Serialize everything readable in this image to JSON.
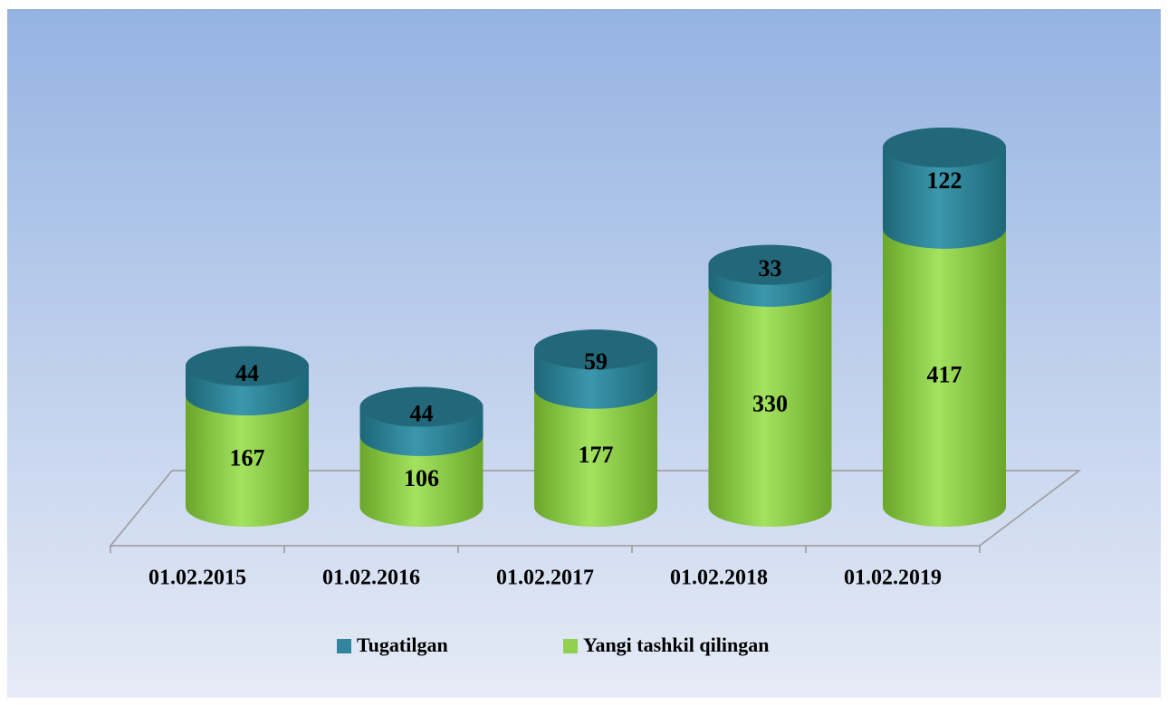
{
  "chart_data": {
    "type": "stacked-cylinder",
    "categories": [
      "01.02.2015",
      "01.02.2016",
      "01.02.2017",
      "01.02.2018",
      "01.02.2019"
    ],
    "series": [
      {
        "name": "Yangi tashkil qilingan",
        "color": "#92d050",
        "values": [
          167,
          106,
          177,
          330,
          417
        ]
      },
      {
        "name": "Tugatilgan",
        "color": "#31859c",
        "values": [
          44,
          44,
          59,
          33,
          122
        ]
      }
    ],
    "legend": "bottom"
  }
}
